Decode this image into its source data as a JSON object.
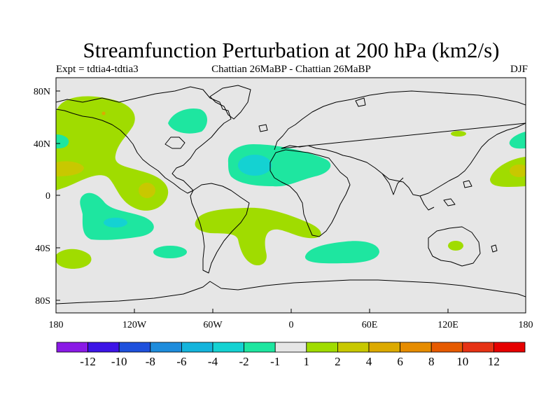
{
  "title": "Streamfunction Perturbation at 200 hPa (km2/s)",
  "subtitle_left": "Expt = tdtia4-tdtia3",
  "subtitle_center": "Chattian  26MaBP - Chattian  26MaBP",
  "subtitle_right": "DJF",
  "lat_labels": [
    "80N",
    "40N",
    "0",
    "40S",
    "80S"
  ],
  "lon_labels": [
    "180",
    "120W",
    "60W",
    "0",
    "60E",
    "120E",
    "180"
  ],
  "colorbar": {
    "colors": [
      "#8a1ae6",
      "#3c14e6",
      "#1e50dc",
      "#1e8cdc",
      "#14b4dc",
      "#14d2d2",
      "#1ee6a0",
      "#e6e6e6",
      "#a0dc00",
      "#c8c800",
      "#dcaa00",
      "#e68c00",
      "#e65a00",
      "#e63214",
      "#e60000"
    ],
    "labels": [
      "-12",
      "-10",
      "-8",
      "-6",
      "-4",
      "-2",
      "-1",
      "1",
      "2",
      "4",
      "6",
      "8",
      "10",
      "12"
    ]
  },
  "map_colors": {
    "background": "#e6e6e6",
    "light_green": "#a0dc00",
    "teal": "#1ee6a0",
    "cyan": "#14d2d2",
    "yellow": "#c8c800",
    "orange": "#dcaa00"
  }
}
